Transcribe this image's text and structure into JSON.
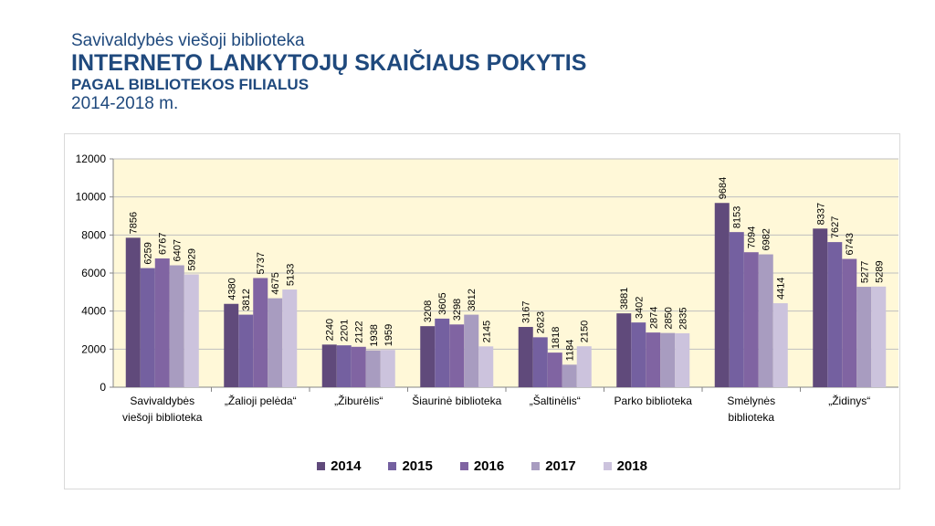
{
  "header": {
    "supertitle": "Savivaldybės viešoji biblioteka",
    "title": "INTERNETO LANKYTOJŲ SKAIČIAUS POKYTIS",
    "subtitle": "PAGAL BIBLIOTEKOS FILIALUS",
    "period": "2014-2018 m."
  },
  "chart_data": {
    "type": "bar",
    "categories": [
      [
        "Savivaldybės",
        "viešoji biblioteka"
      ],
      [
        "„Žalioji pelėda“"
      ],
      [
        "„Žiburėlis“"
      ],
      [
        "Šiaurinė biblioteka"
      ],
      [
        "„Šaltinėlis“"
      ],
      [
        "Parko biblioteka"
      ],
      [
        "Smėlynės",
        "biblioteka"
      ],
      [
        "„Židinys“"
      ]
    ],
    "series": [
      {
        "name": "2014",
        "color": "#604a7b",
        "values": [
          7856,
          4380,
          2240,
          3208,
          3167,
          3881,
          9684,
          8337
        ]
      },
      {
        "name": "2015",
        "color": "#7460a0",
        "values": [
          6259,
          3812,
          2201,
          3605,
          2623,
          3402,
          8153,
          7627
        ]
      },
      {
        "name": "2016",
        "color": "#8064a2",
        "values": [
          6767,
          5737,
          2122,
          3298,
          1818,
          2874,
          7094,
          6743
        ]
      },
      {
        "name": "2017",
        "color": "#a89cc0",
        "values": [
          6407,
          4675,
          1938,
          3812,
          1184,
          2850,
          6982,
          5277
        ]
      },
      {
        "name": "2018",
        "color": "#ccc3dd",
        "values": [
          5929,
          5133,
          1959,
          2145,
          2150,
          2835,
          4414,
          5289
        ]
      }
    ],
    "yticks": [
      0,
      2000,
      4000,
      6000,
      8000,
      10000,
      12000
    ],
    "ylim": [
      0,
      12000
    ],
    "grid": true,
    "plot_background": "#fff8d8",
    "legend": "bottom"
  }
}
